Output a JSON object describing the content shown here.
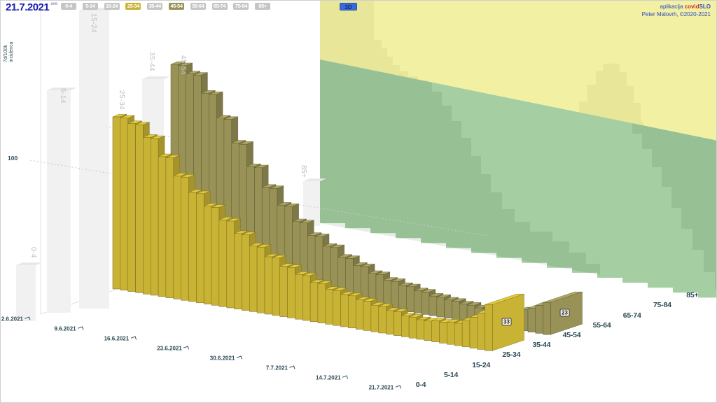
{
  "header": {
    "date": "21.7.2021",
    "weekday": "sre",
    "credit_app": "aplikacija",
    "credit_covid": "covid",
    "credit_slo": "SLO",
    "credit_author": "Peter Malovrh, ©2020-2021"
  },
  "controls": {
    "mode_button": "3D",
    "age_buttons": [
      {
        "label": "0-4",
        "state": "inactive"
      },
      {
        "label": "5-14",
        "state": "inactive"
      },
      {
        "label": "15-24",
        "state": "inactive"
      },
      {
        "label": "25-34",
        "state": "active-yellow"
      },
      {
        "label": "35-44",
        "state": "inactive"
      },
      {
        "label": "45-54",
        "state": "active-olive"
      },
      {
        "label": "55-64",
        "state": "inactive"
      },
      {
        "label": "65-74",
        "state": "inactive"
      },
      {
        "label": "75-84",
        "state": "inactive"
      },
      {
        "label": "85+",
        "state": "inactive"
      }
    ]
  },
  "axis": {
    "y_label_line1": "7d/100k",
    "y_label_line2": "incidenca",
    "y_tick_100": "100"
  },
  "chart_data": {
    "type": "bar",
    "unit": "7d/100k incidenca",
    "date_start": "2.6.2021",
    "date_end": "21.7.2021",
    "n_days": 50,
    "x_tick_labels": [
      "2.6.2021",
      "9.6.2021",
      "16.6.2021",
      "23.6.2021",
      "30.6.2021",
      "7.7.2021",
      "14.7.2021",
      "21.7.2021"
    ],
    "age_axis_labels": [
      "0-4",
      "5-14",
      "15-24",
      "25-34",
      "35-44",
      "45-54",
      "55-64",
      "65-74",
      "75-84",
      "85+"
    ],
    "back_wall_labels": [
      "0-4",
      "5-14",
      "15-24",
      "25-34",
      "35-44",
      "45-54",
      "85+"
    ],
    "y_gridline": 100,
    "ylim": [
      0,
      160
    ],
    "legend_position": "top-buttons",
    "series": [
      {
        "name": "45-54",
        "color": "#999257",
        "values": [
          149,
          149,
          144,
          144,
          132,
          132,
          116,
          116,
          100,
          100,
          85,
          85,
          72,
          72,
          61,
          61,
          51,
          51,
          43,
          43,
          37,
          37,
          31,
          31,
          27,
          27,
          23,
          23,
          20,
          20,
          18,
          18,
          16,
          16,
          14,
          14,
          13,
          13,
          12,
          12,
          11,
          11,
          12,
          12,
          13,
          13,
          15,
          17,
          20,
          23
        ]
      },
      {
        "name": "25-34",
        "color": "#c9b335",
        "values": [
          123,
          123,
          120,
          120,
          112,
          112,
          100,
          100,
          88,
          88,
          78,
          78,
          70,
          70,
          62,
          62,
          54,
          54,
          47,
          47,
          41,
          41,
          36,
          36,
          32,
          32,
          28,
          28,
          25,
          25,
          23,
          23,
          21,
          21,
          19,
          19,
          17,
          17,
          15,
          15,
          14,
          14,
          15,
          15,
          16,
          16,
          19,
          22,
          26,
          33
        ]
      }
    ],
    "end_value_labels": [
      23,
      33
    ]
  },
  "colors": {
    "accent_yellow": "#c9b335",
    "accent_olive": "#999257",
    "wall_yellow": "#f2f0a2",
    "wall_green": "#a5cfa2",
    "text_dark": "#2e4b55",
    "header_blue": "#1d1db0",
    "credit_red": "#d42a2a",
    "credit_blue": "#2a46c8",
    "button_gray": "#c5c5c5",
    "back_label_gray": "#bdbdbd",
    "mode_button_bg": "#3b6ad8"
  }
}
